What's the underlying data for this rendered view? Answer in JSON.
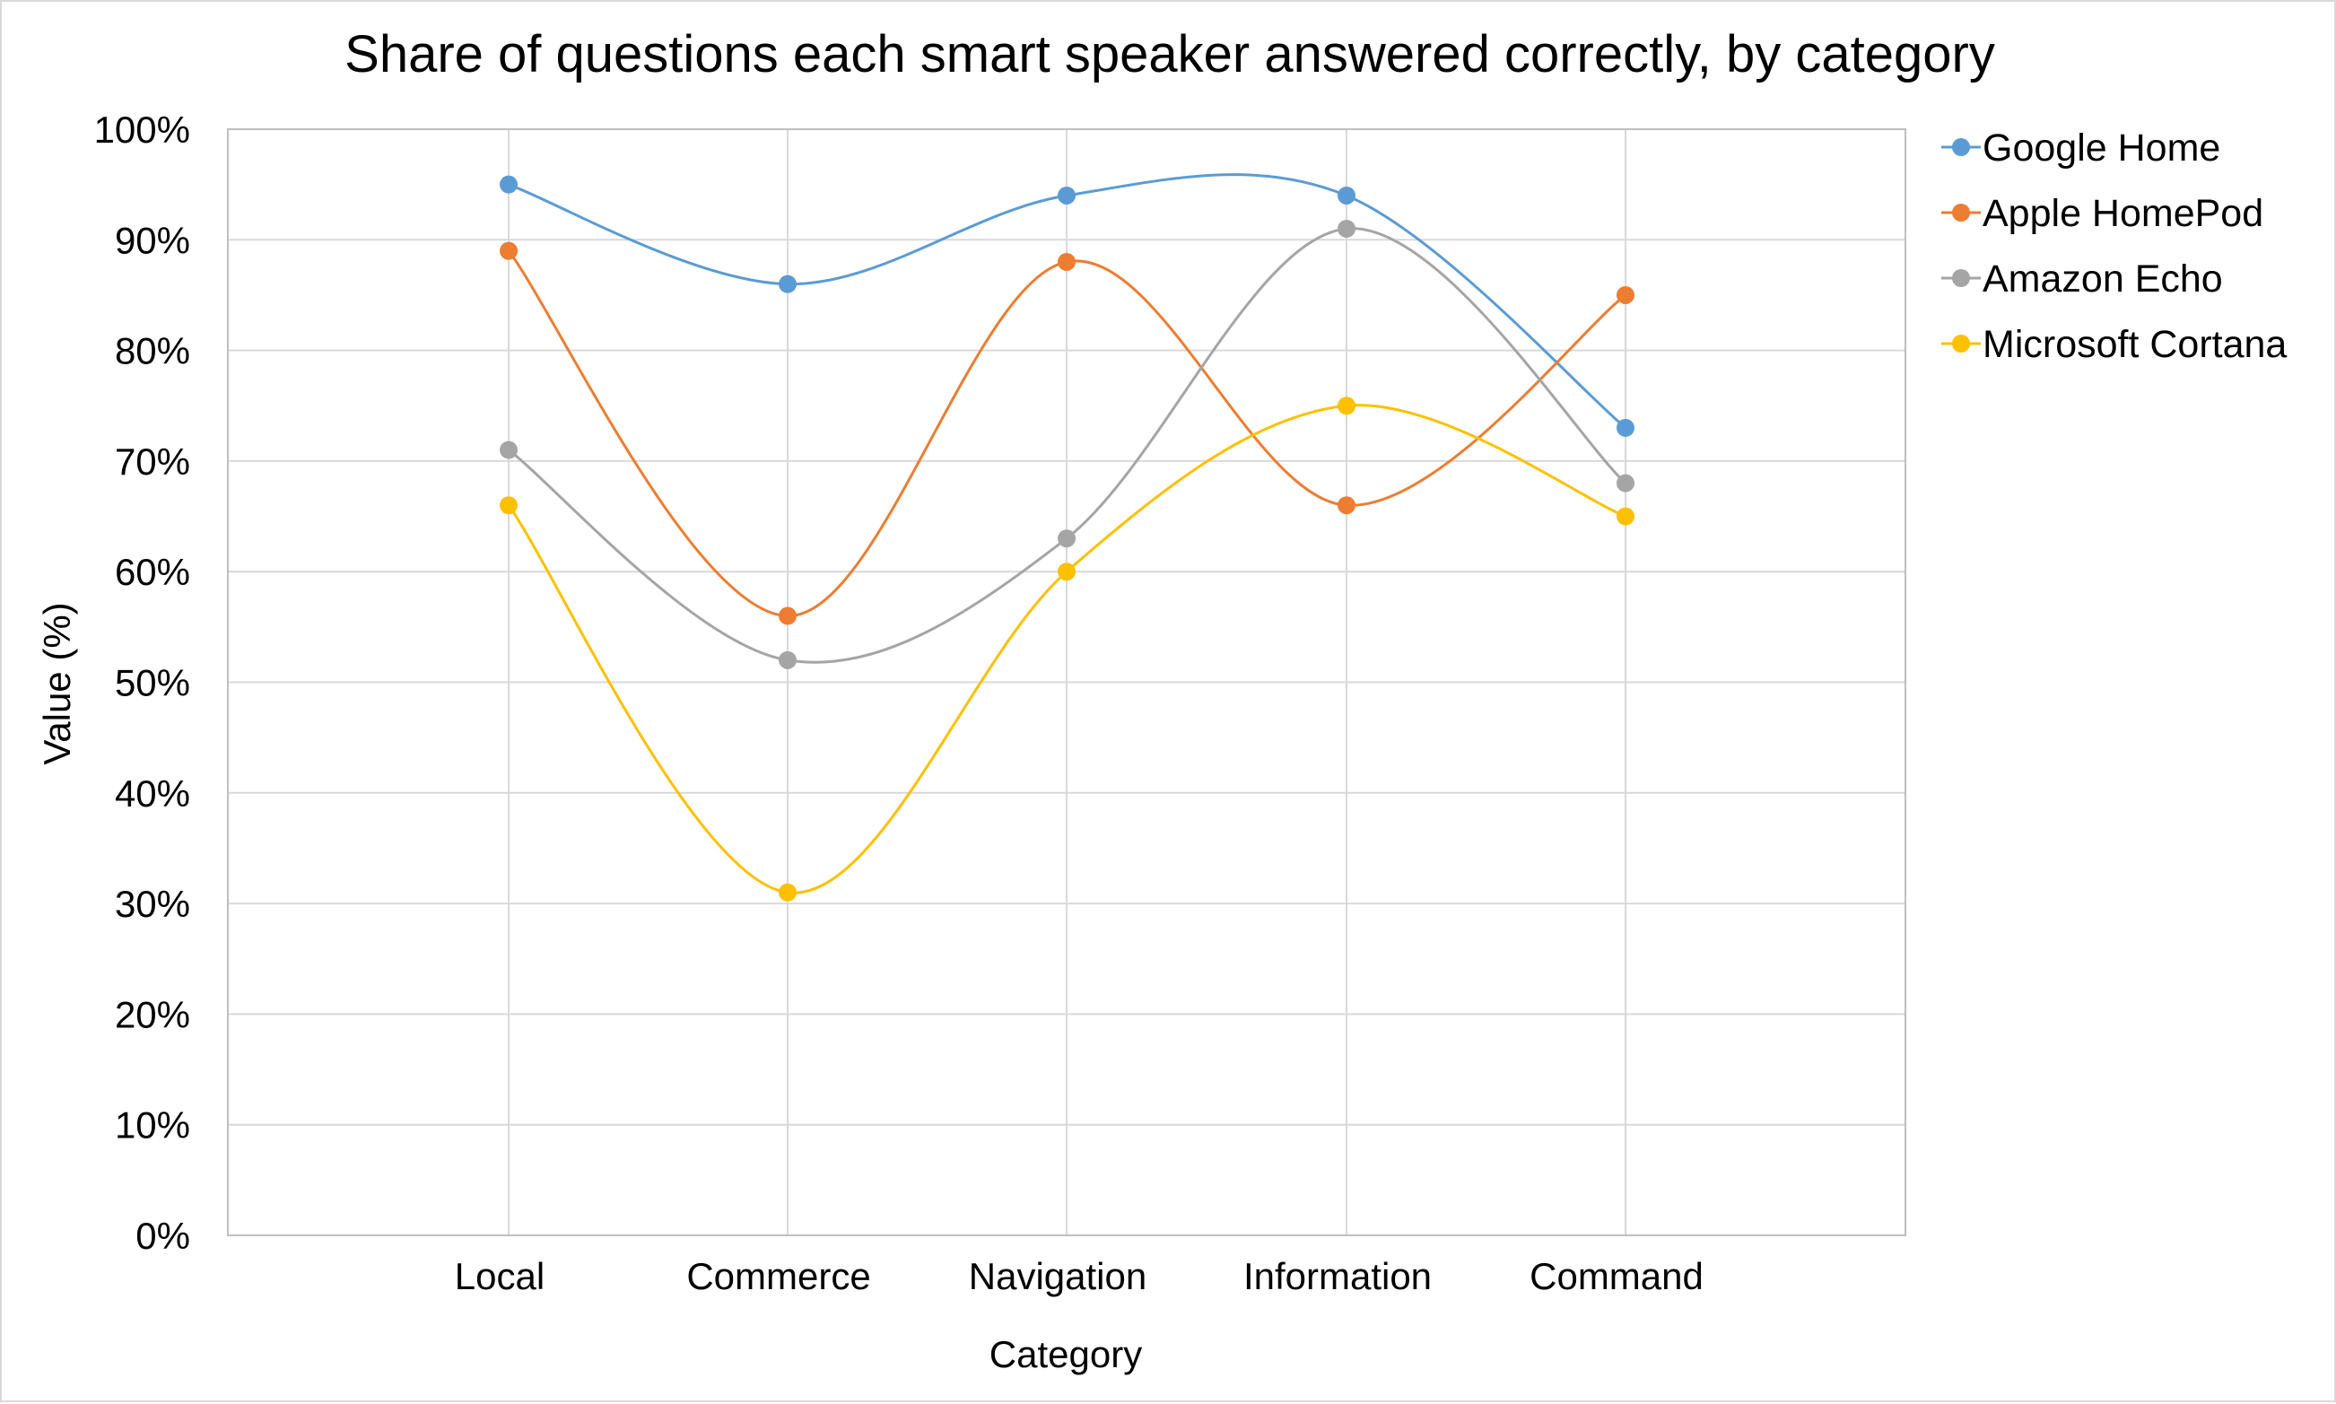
{
  "chart_data": {
    "type": "line",
    "smooth": true,
    "title": "Share of questions each smart speaker answered correctly, by category",
    "xlabel": "Category",
    "ylabel": "Value (%)",
    "categories": [
      "Local",
      "Commerce",
      "Navigation",
      "Information",
      "Command"
    ],
    "ylim": [
      0,
      100
    ],
    "yticks": [
      0,
      10,
      20,
      30,
      40,
      50,
      60,
      70,
      80,
      90,
      100
    ],
    "ytick_labels": [
      "0%",
      "10%",
      "20%",
      "30%",
      "40%",
      "50%",
      "60%",
      "70%",
      "80%",
      "90%",
      "100%"
    ],
    "grid": true,
    "legend_position": "top-right",
    "series": [
      {
        "name": "Google Home",
        "color": "#5b9bd5",
        "values": [
          95,
          86,
          94,
          94,
          73
        ]
      },
      {
        "name": "Apple HomePod",
        "color": "#ed7d31",
        "values": [
          89,
          56,
          88,
          66,
          85
        ]
      },
      {
        "name": "Amazon Echo",
        "color": "#a5a5a5",
        "values": [
          71,
          52,
          63,
          91,
          68
        ]
      },
      {
        "name": "Microsoft Cortana",
        "color": "#ffc000",
        "values": [
          66,
          31,
          60,
          75,
          65
        ]
      }
    ],
    "colors": {
      "gridline": "#d9d9d9",
      "axis": "#bfbfbf",
      "border": "#d9d9d9"
    }
  }
}
